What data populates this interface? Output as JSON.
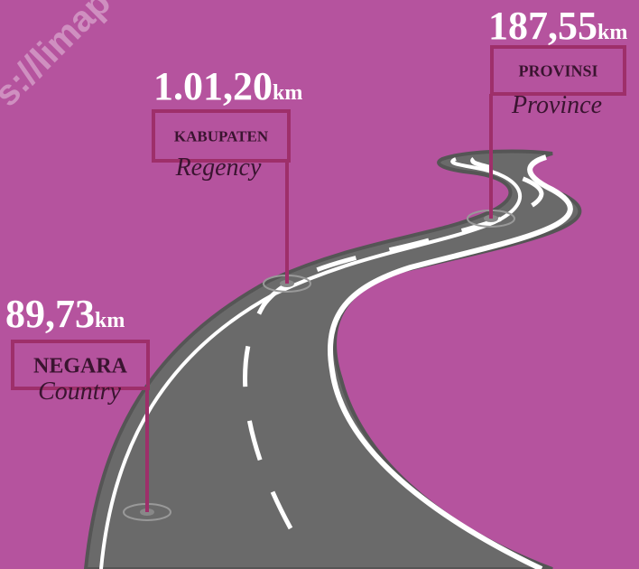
{
  "watermark": "s://limap",
  "markers": [
    {
      "value": "89,73",
      "unit": "km",
      "label": "NEGARA",
      "sublabel": "Country"
    },
    {
      "value": "1.01,20",
      "unit": "km",
      "label": "KABUPATEN",
      "sublabel": "Regency"
    },
    {
      "value": "187,55",
      "unit": "km",
      "label": "PROVINSI",
      "sublabel": "Province"
    }
  ]
}
